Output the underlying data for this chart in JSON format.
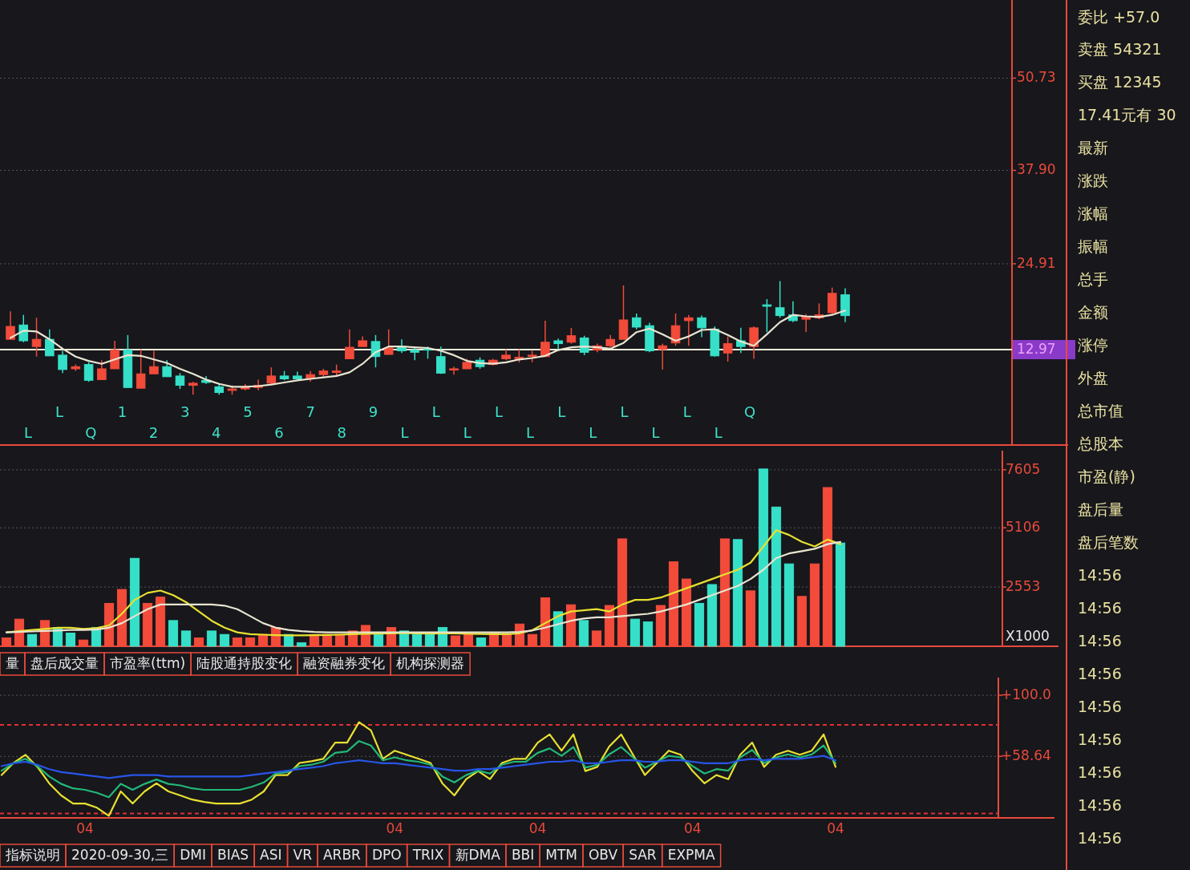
{
  "chart_data": [
    {
      "type": "candlestick",
      "categories": [
        null,
        null,
        null,
        null,
        null,
        null,
        null,
        null,
        null,
        null,
        null,
        null,
        null,
        null,
        null,
        null,
        null,
        null,
        null,
        null,
        null,
        null,
        null,
        null,
        null,
        null,
        null,
        null,
        null,
        null,
        null,
        null,
        null,
        null,
        null,
        null,
        null,
        null,
        null,
        null,
        null,
        null,
        null,
        null,
        null,
        null,
        null,
        null,
        null,
        null,
        null,
        null,
        null,
        null,
        null,
        null,
        null,
        null,
        null,
        null,
        null,
        null,
        null,
        null,
        null
      ],
      "ohlc": [
        [
          14.4,
          18.3,
          14.4,
          16.2
        ],
        [
          16.4,
          17.8,
          14.0,
          14.2
        ],
        [
          13.4,
          17.4,
          12.0,
          14.4
        ],
        [
          14.4,
          15.8,
          12.1,
          12.1
        ],
        [
          12.2,
          12.8,
          9.7,
          10.2
        ],
        [
          10.3,
          10.9,
          10.0,
          10.6
        ],
        [
          10.9,
          11.2,
          8.5,
          8.7
        ],
        [
          8.8,
          11.5,
          8.8,
          10.3
        ],
        [
          10.3,
          14.2,
          10.3,
          12.9
        ],
        [
          12.9,
          15.0,
          7.7,
          7.7
        ],
        [
          7.6,
          13.0,
          7.6,
          9.6
        ],
        [
          9.6,
          12.8,
          9.6,
          10.6
        ],
        [
          10.6,
          11.5,
          9.2,
          9.2
        ],
        [
          9.3,
          9.7,
          7.5,
          8.0
        ],
        [
          8.0,
          8.5,
          6.7,
          8.3
        ],
        [
          8.7,
          9.3,
          8.2,
          8.4
        ],
        [
          7.8,
          8.3,
          6.7,
          7.0
        ],
        [
          7.3,
          8.0,
          6.7,
          7.5
        ],
        [
          7.5,
          8.2,
          7.3,
          7.8
        ],
        [
          7.7,
          8.8,
          7.3,
          8.0
        ],
        [
          8.3,
          10.5,
          8.1,
          9.3
        ],
        [
          9.3,
          10.0,
          8.7,
          8.9
        ],
        [
          9.3,
          9.9,
          8.7,
          8.9
        ],
        [
          9.0,
          10.0,
          8.5,
          9.5
        ],
        [
          9.5,
          10.3,
          9.2,
          10.0
        ],
        [
          9.8,
          10.9,
          9.2,
          10.0
        ],
        [
          11.7,
          15.8,
          11.7,
          13.3
        ],
        [
          13.4,
          14.8,
          13.4,
          14.2
        ],
        [
          14.1,
          15.0,
          10.5,
          12.0
        ],
        [
          12.3,
          15.8,
          12.3,
          13.2
        ],
        [
          13.4,
          14.4,
          12.5,
          12.8
        ],
        [
          12.9,
          13.3,
          11.5,
          12.6
        ],
        [
          13.1,
          13.4,
          11.7,
          12.9
        ],
        [
          12.0,
          13.4,
          9.6,
          9.7
        ],
        [
          10.2,
          10.6,
          9.5,
          10.3
        ],
        [
          10.3,
          11.7,
          10.3,
          11.2
        ],
        [
          11.5,
          11.9,
          10.3,
          10.6
        ],
        [
          10.9,
          11.7,
          10.8,
          11.5
        ],
        [
          11.7,
          13.0,
          11.5,
          12.2
        ],
        [
          11.7,
          13.0,
          11.2,
          11.9
        ],
        [
          12.1,
          12.8,
          11.2,
          12.2
        ],
        [
          12.0,
          17.0,
          12.0,
          14.0
        ],
        [
          14.2,
          14.5,
          13.0,
          13.8
        ],
        [
          14.0,
          16.0,
          13.8,
          14.9
        ],
        [
          14.6,
          14.9,
          12.2,
          12.6
        ],
        [
          12.9,
          13.8,
          12.6,
          13.5
        ],
        [
          13.5,
          15.0,
          13.3,
          14.4
        ],
        [
          14.4,
          21.9,
          14.4,
          17.1
        ],
        [
          17.4,
          18.0,
          15.8,
          16.1
        ],
        [
          16.3,
          16.7,
          12.6,
          12.8
        ],
        [
          13.0,
          13.8,
          10.2,
          13.5
        ],
        [
          13.9,
          18.0,
          13.5,
          16.3
        ],
        [
          17.0,
          17.8,
          13.5,
          17.4
        ],
        [
          17.4,
          17.7,
          14.7,
          16.0
        ],
        [
          15.8,
          16.2,
          12.0,
          12.1
        ],
        [
          12.5,
          14.8,
          11.3,
          13.8
        ],
        [
          14.2,
          16.0,
          12.5,
          13.4
        ],
        [
          13.4,
          16.2,
          11.7,
          16.0
        ],
        [
          19.2,
          20.0,
          15.4,
          19.0
        ],
        [
          18.8,
          22.5,
          17.4,
          17.7
        ],
        [
          17.8,
          19.7,
          16.8,
          17.0
        ],
        [
          17.2,
          17.9,
          15.4,
          17.5
        ],
        [
          17.4,
          19.4,
          17.2,
          17.8
        ],
        [
          18.1,
          21.6,
          17.9,
          20.8
        ],
        [
          20.6,
          21.5,
          16.8,
          17.7
        ]
      ],
      "colors": [
        "#f24b3a",
        "#36e0c8",
        "#f24b3a",
        "#36e0c8",
        "#36e0c8",
        "#f24b3a",
        "#36e0c8",
        "#f24b3a",
        "#f24b3a",
        "#36e0c8",
        "#f24b3a",
        "#f24b3a",
        "#36e0c8",
        "#36e0c8",
        "#f24b3a",
        "#36e0c8",
        "#36e0c8",
        "#f24b3a",
        "#f24b3a",
        "#f24b3a",
        "#f24b3a",
        "#36e0c8",
        "#36e0c8",
        "#f24b3a",
        "#f24b3a",
        "#f24b3a",
        "#f24b3a",
        "#f24b3a",
        "#36e0c8",
        "#f24b3a",
        "#36e0c8",
        "#36e0c8",
        "#36e0c8",
        "#36e0c8",
        "#f24b3a",
        "#f24b3a",
        "#36e0c8",
        "#f24b3a",
        "#f24b3a",
        "#f24b3a",
        "#f24b3a",
        "#f24b3a",
        "#36e0c8",
        "#f24b3a",
        "#36e0c8",
        "#f24b3a",
        "#f24b3a",
        "#f24b3a",
        "#36e0c8",
        "#36e0c8",
        "#f24b3a",
        "#f24b3a",
        "#f24b3a",
        "#36e0c8",
        "#36e0c8",
        "#f24b3a",
        "#36e0c8",
        "#f24b3a",
        "#36e0c8",
        "#36e0c8",
        "#36e0c8",
        "#f24b3a",
        "#f24b3a",
        "#f24b3a",
        "#36e0c8"
      ],
      "series": [
        {
          "type": "line",
          "color": "#e8e4d0",
          "values": [
            14.6,
            15.6,
            15.5,
            14.4,
            13.1,
            12.0,
            11.4,
            11.0,
            11.6,
            12.2,
            12.1,
            11.6,
            11.1,
            10.3,
            9.6,
            8.8,
            8.2,
            7.8,
            7.8,
            7.9,
            8.1,
            8.4,
            8.7,
            8.9,
            9.1,
            9.3,
            9.8,
            11.0,
            12.6,
            13.4,
            13.4,
            13.3,
            13.2,
            12.8,
            12.2,
            11.4,
            11.1,
            11.0,
            11.2,
            11.6,
            11.8,
            12.1,
            12.9,
            13.3,
            13.4,
            13.3,
            13.1,
            13.9,
            15.4,
            15.9,
            15.1,
            14.2,
            14.8,
            15.7,
            15.8,
            15.0,
            14.1,
            13.5,
            15.1,
            16.8,
            17.8,
            17.6,
            17.5,
            17.8,
            18.4
          ]
        }
      ],
      "ylim": [
        -0.3,
        61.6
      ],
      "yticks": [
        24.91,
        {
          "value": 37.9,
          "label": "37.90"
        },
        50.73
      ],
      "grid": "y",
      "ref_lines": [
        {
          "axis": "y",
          "value": 12.97,
          "label": "12.97",
          "color": "#f0ecd8"
        }
      ],
      "annotations": [
        "L",
        "L",
        "Q",
        "1",
        "2",
        "3",
        "4",
        "5",
        "6",
        "7",
        "8",
        "9",
        "L",
        "L",
        "L",
        "L",
        "L",
        "L",
        "L",
        "L",
        "L",
        "L",
        "L",
        "Q"
      ]
    },
    {
      "type": "bar",
      "categories": [
        null,
        null,
        null,
        null,
        null,
        null,
        null,
        null,
        null,
        null,
        null,
        null,
        null,
        null,
        null,
        null,
        null,
        null,
        null,
        null,
        null,
        null,
        null,
        null,
        null,
        null,
        null,
        null,
        null,
        null,
        null,
        null,
        null,
        null,
        null,
        null,
        null,
        null,
        null,
        null,
        null,
        null,
        null,
        null,
        null,
        null,
        null,
        null,
        null,
        null,
        null,
        null,
        null,
        null,
        null,
        null,
        null,
        null,
        null,
        null,
        null,
        null,
        null,
        null,
        null,
        null
      ],
      "series": [
        {
          "type": "bar",
          "colors": [
            "#f24b3a",
            "#f24b3a",
            "#36e0c8",
            "#f24b3a",
            "#36e0c8",
            "#36e0c8",
            "#f24b3a",
            "#36e0c8",
            "#f24b3a",
            "#f24b3a",
            "#36e0c8",
            "#f24b3a",
            "#f24b3a",
            "#36e0c8",
            "#36e0c8",
            "#f24b3a",
            "#36e0c8",
            "#36e0c8",
            "#f24b3a",
            "#f24b3a",
            "#f24b3a",
            "#f24b3a",
            "#36e0c8",
            "#36e0c8",
            "#f24b3a",
            "#f24b3a",
            "#f24b3a",
            "#f24b3a",
            "#f24b3a",
            "#36e0c8",
            "#f24b3a",
            "#36e0c8",
            "#36e0c8",
            "#36e0c8",
            "#36e0c8",
            "#f24b3a",
            "#f24b3a",
            "#36e0c8",
            "#f24b3a",
            "#f24b3a",
            "#f24b3a",
            "#f24b3a",
            "#f24b3a",
            "#36e0c8",
            "#f24b3a",
            "#36e0c8",
            "#f24b3a",
            "#f24b3a",
            "#f24b3a",
            "#36e0c8",
            "#36e0c8",
            "#f24b3a",
            "#f24b3a",
            "#f24b3a",
            "#36e0c8",
            "#36e0c8",
            "#f24b3a",
            "#36e0c8",
            "#f24b3a",
            "#36e0c8",
            "#36e0c8",
            "#36e0c8",
            "#f24b3a",
            "#f24b3a",
            "#f24b3a",
            "#36e0c8"
          ],
          "values": [
            360,
            1170,
            510,
            1110,
            810,
            570,
            270,
            810,
            1850,
            2450,
            3790,
            1850,
            2120,
            1110,
            660,
            360,
            660,
            510,
            360,
            360,
            510,
            810,
            510,
            150,
            510,
            510,
            510,
            660,
            900,
            510,
            810,
            660,
            510,
            510,
            810,
            450,
            510,
            360,
            570,
            510,
            960,
            510,
            2090,
            1490,
            1790,
            1110,
            660,
            1760,
            4630,
            1170,
            1050,
            1760,
            3640,
            2900,
            1850,
            2660,
            4630,
            4600,
            2390,
            7640,
            6000,
            3550,
            2150,
            3550,
            6840,
            4450
          ]
        },
        {
          "type": "line",
          "color": "#e8e030",
          "values": [
            600,
            650,
            700,
            750,
            800,
            800,
            750,
            780,
            900,
            1400,
            2000,
            2300,
            2400,
            2200,
            1900,
            1500,
            1100,
            800,
            600,
            520,
            500,
            480,
            470,
            470,
            480,
            490,
            500,
            520,
            540,
            550,
            560,
            570,
            560,
            550,
            560,
            560,
            540,
            530,
            520,
            520,
            560,
            700,
            1000,
            1300,
            1500,
            1550,
            1600,
            1500,
            1800,
            2000,
            2000,
            2100,
            2300,
            2500,
            2700,
            2900,
            3100,
            3300,
            3600,
            4300,
            5000,
            4800,
            4500,
            4300,
            4600,
            4400
          ]
        },
        {
          "type": "line",
          "color": "#e8e4d0",
          "values": [
            600,
            620,
            640,
            660,
            680,
            700,
            700,
            720,
            800,
            1000,
            1300,
            1600,
            1800,
            1800,
            1800,
            1800,
            1800,
            1750,
            1600,
            1300,
            1000,
            800,
            700,
            650,
            620,
            600,
            600,
            600,
            600,
            600,
            600,
            600,
            600,
            600,
            600,
            600,
            600,
            600,
            600,
            600,
            620,
            680,
            800,
            950,
            1100,
            1200,
            1250,
            1250,
            1300,
            1350,
            1400,
            1500,
            1650,
            1800,
            2000,
            2200,
            2400,
            2600,
            2900,
            3300,
            3800,
            4000,
            4100,
            4200,
            4400,
            4500
          ]
        }
      ],
      "ylim": [
        0,
        8430
      ],
      "yticks": [
        2553,
        5106,
        7605
      ],
      "ylabel": "X1000",
      "grid": "y",
      "annotations": [
        "量",
        "盘后成交量",
        "市盈率(ttm)",
        "陆股通持股变化",
        "融资融券变化",
        "机构探测器"
      ]
    },
    {
      "type": "line",
      "categories": [
        null,
        null,
        null,
        null,
        null,
        null,
        null,
        "04",
        null,
        null,
        null,
        null,
        null,
        null,
        null,
        null,
        null,
        null,
        null,
        null,
        null,
        null,
        null,
        null,
        null,
        null,
        null,
        null,
        null,
        null,
        null,
        null,
        null,
        "04",
        null,
        null,
        null,
        null,
        null,
        null,
        null,
        null,
        null,
        null,
        null,
        "04",
        null,
        null,
        null,
        null,
        null,
        null,
        null,
        null,
        null,
        null,
        null,
        null,
        "04",
        null,
        null,
        null,
        null,
        null,
        null,
        null,
        null,
        null,
        null,
        null,
        "04"
      ],
      "series": [
        {
          "color": "#e8e030",
          "values": [
            46.0,
            54.2,
            59.7,
            51.5,
            40.4,
            32.2,
            26.7,
            26.7,
            23.9,
            18.4,
            34.9,
            26.7,
            34.9,
            40.4,
            34.9,
            32.2,
            29.4,
            27.8,
            26.7,
            26.7,
            26.7,
            29.4,
            34.9,
            46.0,
            46.0,
            54.2,
            55.3,
            57.0,
            68.0,
            68.0,
            81.8,
            76.3,
            57.0,
            62.5,
            59.7,
            57.0,
            54.2,
            40.4,
            32.2,
            43.2,
            48.7,
            43.2,
            54.2,
            57.0,
            57.0,
            68.0,
            73.5,
            62.5,
            73.5,
            48.7,
            51.5,
            65.3,
            73.5,
            59.7,
            46.0,
            54.2,
            62.5,
            59.7,
            48.7,
            40.4,
            46.0,
            43.2,
            59.7,
            68.0,
            51.5,
            59.7,
            62.5,
            59.7,
            62.5,
            73.5,
            51.5
          ]
        },
        {
          "color": "#22b878",
          "values": [
            49,
            54,
            57,
            52,
            45,
            40,
            37,
            36,
            34,
            31,
            40,
            36,
            40,
            43,
            40,
            39,
            37,
            36,
            36,
            36,
            36,
            38,
            41,
            47,
            48,
            52,
            53,
            55,
            61,
            62,
            69,
            66,
            56,
            58,
            56,
            55,
            53,
            45,
            41,
            46,
            49,
            47,
            53,
            55,
            55,
            61,
            64,
            59,
            65,
            51,
            53,
            60,
            65,
            58,
            51,
            55,
            59,
            58,
            52,
            47,
            50,
            49,
            58,
            63,
            54,
            58,
            60,
            58,
            60,
            66,
            54
          ]
        },
        {
          "color": "#2855e8",
          "values": [
            52,
            54,
            55,
            53,
            50,
            48,
            47,
            46,
            45,
            44,
            45,
            46,
            46,
            46,
            45,
            45,
            45,
            45,
            45,
            45,
            45,
            46,
            47,
            48,
            49,
            50,
            51,
            52,
            54,
            55,
            56,
            55,
            54,
            54,
            53,
            52,
            51,
            50,
            49,
            49,
            50,
            50,
            51,
            52,
            53,
            54,
            55,
            55,
            56,
            54,
            54,
            55,
            56,
            56,
            55,
            55,
            56,
            56,
            55,
            54,
            54,
            54,
            56,
            57,
            56,
            57,
            57,
            57,
            58,
            59,
            56
          ]
        }
      ],
      "ylim": [
        17,
        112
      ],
      "yticks": [
        {
          "value": 100,
          "label": "+100.0"
        },
        {
          "value": 58.64,
          "label": "+58.64"
        }
      ],
      "grid": "y",
      "ref_lines": [
        {
          "axis": "y",
          "value": 80,
          "color": "#e03030",
          "line_style": "dashed"
        },
        {
          "axis": "y",
          "value": 20,
          "color": "#e03030",
          "line_style": "dashed"
        }
      ],
      "annotations": [
        "指标说明",
        "2020-09-30,三",
        "DMI",
        "BIAS",
        "ASI",
        "VR",
        "ARBR",
        "DPO",
        "TRIX",
        "新DMA",
        "BBI",
        "MTM",
        "OBV",
        "SAR",
        "EXPMA"
      ]
    },
    {
      "type": "other",
      "annotations": [
        "委比 +57.0",
        "卖盘 54321",
        "买盘 12345",
        "17.41元有 30",
        "最新",
        "涨跌",
        "涨幅",
        "振幅",
        "总手",
        "金额",
        "涨停",
        "外盘",
        "总市值",
        "总股本",
        "市盈(静)",
        "盘后量",
        "盘后笔数",
        "14:56",
        "14:56",
        "14:56",
        "14:56",
        "14:56",
        "14:56",
        "14:56",
        "14:56",
        "14:56"
      ]
    }
  ]
}
